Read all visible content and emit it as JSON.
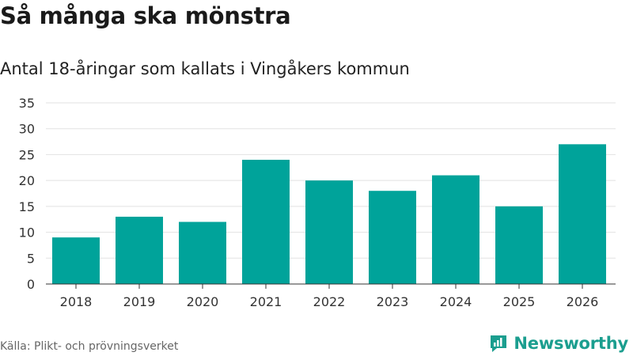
{
  "title": "Så många ska mönstra",
  "subtitle": "Antal 18-åringar som kallats i Vingåkers kommun",
  "source": "Källa: Plikt- och prövningsverket",
  "brand": {
    "name": "Newsworthy",
    "icon": "newsworthy-logo-icon",
    "color": "#1b9e8f"
  },
  "chart_data": {
    "type": "bar",
    "categories": [
      "2018",
      "2019",
      "2020",
      "2021",
      "2022",
      "2023",
      "2024",
      "2025",
      "2026"
    ],
    "values": [
      9,
      13,
      12,
      24,
      20,
      18,
      21,
      15,
      27
    ],
    "ylim": [
      0,
      35
    ],
    "yticks": [
      0,
      5,
      10,
      15,
      20,
      25,
      30,
      35
    ],
    "grid": true,
    "bar_color": "#00a39a",
    "xlabel": "",
    "ylabel": ""
  }
}
